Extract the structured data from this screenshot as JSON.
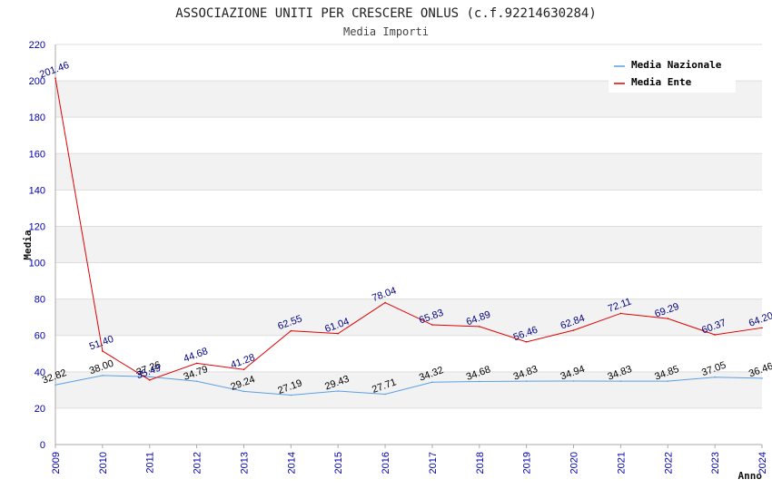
{
  "chart_data": {
    "type": "line",
    "title": "ASSOCIAZIONE UNITI PER CRESCERE ONLUS (c.f.92214630284)",
    "subtitle": "Media Importi",
    "xlabel": "Anno",
    "ylabel": "Media",
    "ylim": [
      0,
      220
    ],
    "yticks": [
      0,
      20,
      40,
      60,
      80,
      100,
      120,
      140,
      160,
      180,
      200,
      220
    ],
    "categories": [
      "2009",
      "2010",
      "2011",
      "2012",
      "2013",
      "2014",
      "2015",
      "2016",
      "2017",
      "2018",
      "2019",
      "2020",
      "2021",
      "2022",
      "2023",
      "2024"
    ],
    "series": [
      {
        "name": "Media Nazionale",
        "color": "#5aa0e6",
        "values": [
          32.82,
          38.0,
          37.26,
          34.79,
          29.24,
          27.19,
          29.43,
          27.71,
          34.32,
          34.68,
          34.83,
          34.94,
          34.83,
          34.85,
          37.05,
          36.46
        ],
        "labels": [
          "32.82",
          "38.00",
          "37.26",
          "34.79",
          "29.24",
          "27.19",
          "29.43",
          "27.71",
          "34.32",
          "34.68",
          "34.83",
          "34.94",
          "34.83",
          "34.85",
          "37.05",
          "36.46"
        ]
      },
      {
        "name": "Media Ente",
        "color": "#e00000",
        "values": [
          201.46,
          51.4,
          35.49,
          44.68,
          41.28,
          62.55,
          61.04,
          78.04,
          65.83,
          64.89,
          56.46,
          62.84,
          72.11,
          69.29,
          60.37,
          64.2
        ],
        "labels": [
          "201.46",
          "51.40",
          "35.49",
          "44.68",
          "41.28",
          "62.55",
          "61.04",
          "78.04",
          "65.83",
          "64.89",
          "56.46",
          "62.84",
          "72.11",
          "69.29",
          "60.37",
          "64.20"
        ]
      }
    ],
    "grid": true,
    "legend_position": "top-right",
    "band_colors": [
      "#ffffff",
      "#f2f2f2"
    ],
    "axis_color": "#aaaaaa",
    "tick_color": "#0000aa"
  }
}
